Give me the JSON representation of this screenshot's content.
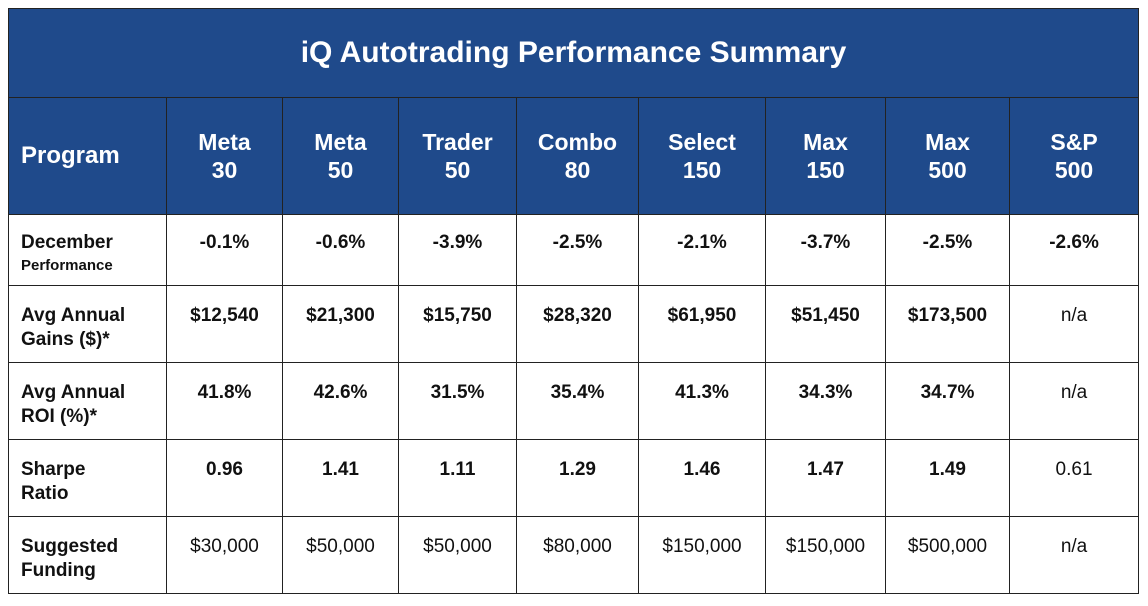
{
  "title": "iQ Autotrading Performance Summary",
  "header": {
    "first": "Program",
    "programs": [
      {
        "line1": "Meta",
        "line2": "30"
      },
      {
        "line1": "Meta",
        "line2": "50"
      },
      {
        "line1": "Trader",
        "line2": "50"
      },
      {
        "line1": "Combo",
        "line2": "80"
      },
      {
        "line1": "Select",
        "line2": "150"
      },
      {
        "line1": "Max",
        "line2": "150"
      },
      {
        "line1": "Max",
        "line2": "500"
      },
      {
        "line1": "S&P",
        "line2": "500"
      }
    ]
  },
  "rows": [
    {
      "label1": "December",
      "label2": "Performance",
      "values": [
        "-0.1%",
        "-0.6%",
        "-3.9%",
        "-2.5%",
        "-2.1%",
        "-3.7%",
        "-2.5%",
        "-2.6%"
      ]
    },
    {
      "label1": "Avg Annual",
      "label2": "Gains ($)*",
      "values": [
        "$12,540",
        "$21,300",
        "$15,750",
        "$28,320",
        "$61,950",
        "$51,450",
        "$173,500",
        "n/a"
      ]
    },
    {
      "label1": "Avg Annual",
      "label2": "ROI (%)*",
      "values": [
        "41.8%",
        "42.6%",
        "31.5%",
        "35.4%",
        "41.3%",
        "34.3%",
        "34.7%",
        "n/a"
      ]
    },
    {
      "label1": "Sharpe",
      "label2": "Ratio",
      "values": [
        "0.96",
        "1.41",
        "1.11",
        "1.29",
        "1.46",
        "1.47",
        "1.49",
        "0.61"
      ]
    },
    {
      "label1": "Suggested",
      "label2": "Funding",
      "values": [
        "$30,000",
        "$50,000",
        "$50,000",
        "$80,000",
        "$150,000",
        "$150,000",
        "$500,000",
        "n/a"
      ]
    }
  ],
  "colors": {
    "header_bg": "#1f4a8b",
    "header_text": "#ffffff",
    "border": "#222222"
  }
}
